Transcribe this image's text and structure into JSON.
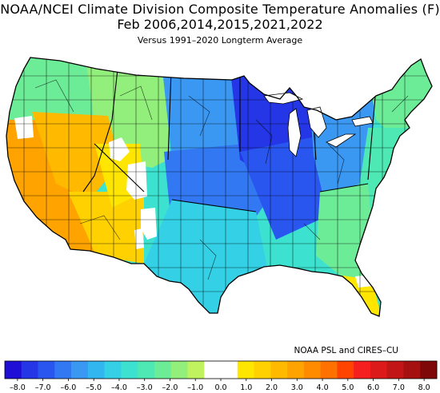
{
  "header": {
    "title": "NOAA/NCEI Climate Division Composite Temperature Anomalies (F)",
    "subtitle": "Feb  2006,2014,2015,2021,2022",
    "baseline": "Versus 1991–2020 Longterm Average"
  },
  "credit": "NOAA PSL and CIRES–CU",
  "colorbar": {
    "colors": [
      "#1f0fd6",
      "#2436e6",
      "#2a56f0",
      "#3278f3",
      "#3a98f3",
      "#31b6f0",
      "#34d0e6",
      "#3ce2cf",
      "#4de8b4",
      "#6cec97",
      "#93ef7b",
      "#bff25e",
      "#ffffff",
      "#ffffff",
      "#ffe600",
      "#ffd100",
      "#ffba00",
      "#ffa300",
      "#ff8c00",
      "#ff7100",
      "#ff4400",
      "#f51f1f",
      "#dd1a1a",
      "#c21515",
      "#a51010",
      "#7e0808"
    ],
    "labels": [
      "–8.0",
      "–7.0",
      "–6.0",
      "–5.0",
      "–4.0",
      "–3.0",
      "–2.0",
      "–1.0",
      "0.0",
      "1.0",
      "2.0",
      "3.0",
      "4.0",
      "5.0",
      "6.0",
      "7.0",
      "8.0"
    ]
  },
  "regions": [
    {
      "name": "pacific-northwest",
      "color": "#6cec97"
    },
    {
      "name": "northern-rockies",
      "color": "#93ef7b"
    },
    {
      "name": "california",
      "color": "#ffa300"
    },
    {
      "name": "great-basin",
      "color": "#ffba00"
    },
    {
      "name": "desert-southwest",
      "color": "#ffd100"
    },
    {
      "name": "colorado-plateau",
      "color": "#ffe600"
    },
    {
      "name": "northern-plains",
      "color": "#3a98f3"
    },
    {
      "name": "central-plains",
      "color": "#3278f3"
    },
    {
      "name": "upper-midwest",
      "color": "#2436e6"
    },
    {
      "name": "mid-mississippi",
      "color": "#2a56f0"
    },
    {
      "name": "texas",
      "color": "#34d0e6"
    },
    {
      "name": "gulf-coast",
      "color": "#3ce2cf"
    },
    {
      "name": "ohio-valley",
      "color": "#3a98f3"
    },
    {
      "name": "southeast",
      "color": "#6cec97"
    },
    {
      "name": "mid-atlantic",
      "color": "#4de8b4"
    },
    {
      "name": "new-england",
      "color": "#6cec97"
    },
    {
      "name": "florida",
      "color": "#ffe600"
    }
  ]
}
